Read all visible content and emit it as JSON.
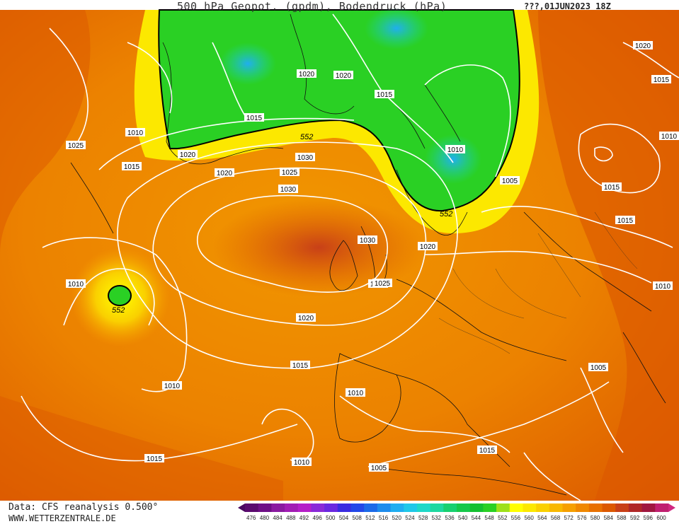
{
  "header": {
    "title": "500 hPa Geopot. (gpdm), Bodendruck (hPa)",
    "datestamp": "???,01JUN2023 18Z"
  },
  "footer": {
    "data_source": "Data: CFS reanalysis 0.500°",
    "website": "WWW.WETTERZENTRALE.DE"
  },
  "isobar_labels": [
    "1020",
    "1020",
    "1020",
    "1015",
    "1010",
    "1005",
    "1010",
    "1030",
    "1015",
    "1025",
    "1020",
    "1015",
    "1025",
    "1030",
    "1015",
    "1020",
    "1010",
    "1030",
    "1025",
    "1020",
    "1015",
    "1010",
    "1015",
    "1010",
    "1005",
    "1010",
    "1010",
    "1015",
    "1010",
    "1005",
    "1015",
    "1020",
    "1015",
    "1025"
  ],
  "contour_552_labels": [
    "552",
    "552",
    "552"
  ],
  "colorbar": {
    "values": [
      "476",
      "480",
      "484",
      "488",
      "492",
      "496",
      "500",
      "504",
      "508",
      "512",
      "516",
      "520",
      "524",
      "528",
      "532",
      "536",
      "540",
      "544",
      "548",
      "552",
      "556",
      "560",
      "564",
      "568",
      "572",
      "576",
      "580",
      "584",
      "588",
      "592",
      "596",
      "600"
    ],
    "colors": [
      "#5a0a6e",
      "#6e0f86",
      "#8a1aa0",
      "#a21db4",
      "#b51fc8",
      "#8a2ad8",
      "#6a28e0",
      "#3a2ce0",
      "#2348e8",
      "#1c6ae8",
      "#1e8cec",
      "#20aef0",
      "#20c8e8",
      "#1fd8c8",
      "#1ed8a0",
      "#18d070",
      "#16c84a",
      "#14c030",
      "#2ad024",
      "#9ee01a",
      "#ffff00",
      "#fce800",
      "#fad000",
      "#f8b800",
      "#f6a000",
      "#f08800",
      "#e87000",
      "#dc5800",
      "#c84018",
      "#b02828",
      "#a01840",
      "#c02070"
    ]
  }
}
